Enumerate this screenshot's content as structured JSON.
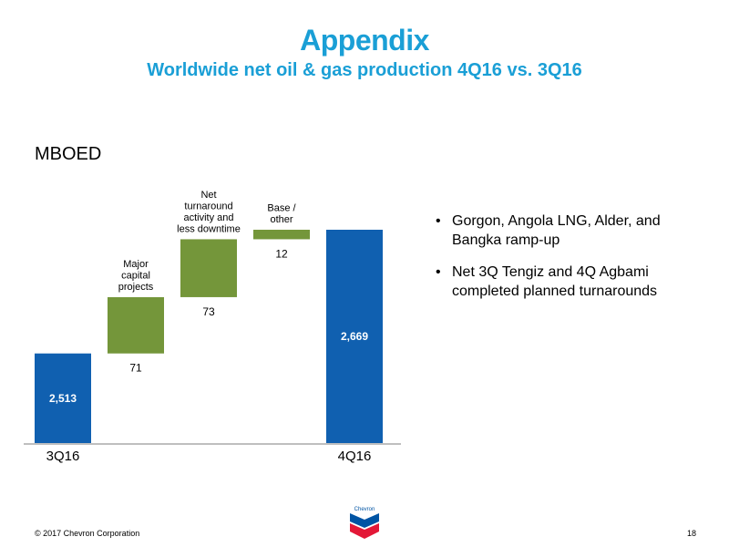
{
  "header": {
    "title": "Appendix",
    "subtitle": "Worldwide net oil & gas production 4Q16 vs. 3Q16"
  },
  "chart_data": {
    "type": "waterfall",
    "unit_label": "MBOED",
    "bars": [
      {
        "kind": "total",
        "x_label": "3Q16",
        "label": "",
        "value": 2513,
        "value_label": "2,513",
        "color": "#1060b0"
      },
      {
        "kind": "delta",
        "x_label": "",
        "label": "Major\ncapital\nprojects",
        "value": 71,
        "value_label": "71",
        "color": "#74963a"
      },
      {
        "kind": "delta",
        "x_label": "",
        "label": "Net\nturnaround\nactivity and\nless downtime",
        "value": 73,
        "value_label": "73",
        "color": "#74963a"
      },
      {
        "kind": "delta",
        "x_label": "",
        "label": "Base /\nother",
        "value": 12,
        "value_label": "12",
        "color": "#74963a"
      },
      {
        "kind": "total",
        "x_label": "4Q16",
        "label": "",
        "value": 2669,
        "value_label": "2,669",
        "color": "#1060b0"
      }
    ],
    "ylim": [
      2400,
      2690
    ],
    "grid": false
  },
  "bullets": [
    "Gorgon, Angola LNG, Alder, and Bangka ramp-up",
    "Net 3Q Tengiz and 4Q Agbami completed planned turnarounds"
  ],
  "footer": {
    "copyright": "© 2017 Chevron Corporation",
    "page_number": "18"
  },
  "logo": {
    "text": "Chevron",
    "colors": {
      "blue": "#0054a4",
      "red": "#e31837"
    }
  }
}
